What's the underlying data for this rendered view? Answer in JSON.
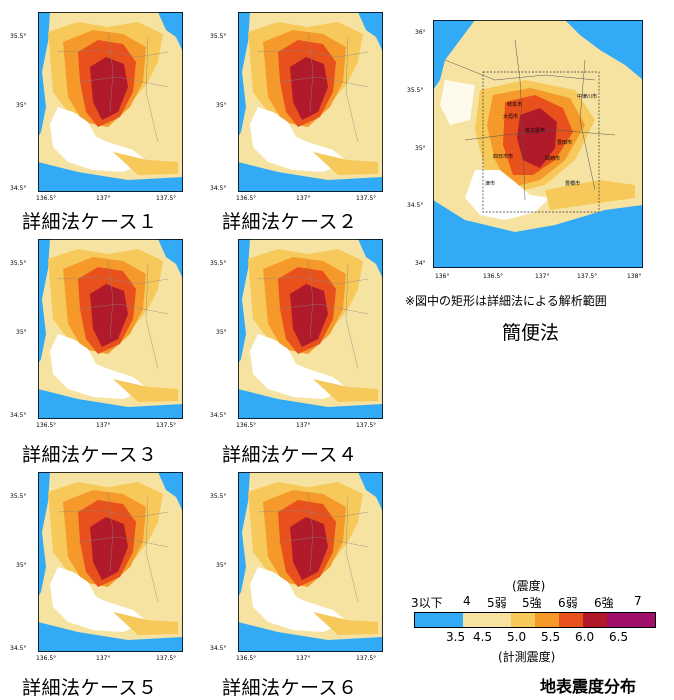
{
  "panels": [
    {
      "caption": "詳細法ケース１",
      "xticks": [
        "136.5°",
        "137°",
        "137.5°"
      ],
      "yticks": [
        "35.5°",
        "35°",
        "34.5°"
      ]
    },
    {
      "caption": "詳細法ケース２",
      "xticks": [
        "136.5°",
        "137°",
        "137.5°"
      ],
      "yticks": [
        "35.5°",
        "35°",
        "34.5°"
      ]
    },
    {
      "caption": "詳細法ケース３",
      "xticks": [
        "136.5°",
        "137°",
        "137.5°"
      ],
      "yticks": [
        "35.5°",
        "35°",
        "34.5°"
      ]
    },
    {
      "caption": "詳細法ケース４",
      "xticks": [
        "136.5°",
        "137°",
        "137.5°"
      ],
      "yticks": [
        "35.5°",
        "35°",
        "34.5°"
      ]
    },
    {
      "caption": "詳細法ケース５",
      "xticks": [
        "136.5°",
        "137°",
        "137.5°"
      ],
      "yticks": [
        "35.5°",
        "35°",
        "34.5°"
      ]
    },
    {
      "caption": "詳細法ケース６",
      "xticks": [
        "136.5°",
        "137°",
        "137.5°"
      ],
      "yticks": [
        "35.5°",
        "35°",
        "34.5°"
      ]
    }
  ],
  "overview": {
    "note": "※図中の矩形は詳細法による解析範囲",
    "caption": "簡便法",
    "xticks": [
      "136°",
      "136.5°",
      "137°",
      "137.5°",
      "138°"
    ],
    "yticks": [
      "36°",
      "35.5°",
      "35°",
      "34.5°",
      "34°"
    ],
    "cities": [
      "岐阜市",
      "中津川市",
      "名古屋市",
      "豊田市",
      "四日市市",
      "岡崎市",
      "豊橋市",
      "津市",
      "大垣市"
    ]
  },
  "legend": {
    "top_label": "(震度)",
    "intensity_classes": [
      "3以下",
      "4",
      "5弱",
      "5強",
      "6弱",
      "6強",
      "7"
    ],
    "scale_values": [
      "3.5",
      "4.5",
      "5.0",
      "5.5",
      "6.0",
      "6.5"
    ],
    "bottom_label": "(計測震度)",
    "colors": [
      "#33aaf5",
      "#f7e3a1",
      "#f7c85a",
      "#f59a2a",
      "#e8501c",
      "#b01a2a",
      "#a0106a"
    ],
    "title": "地表震度分布"
  }
}
